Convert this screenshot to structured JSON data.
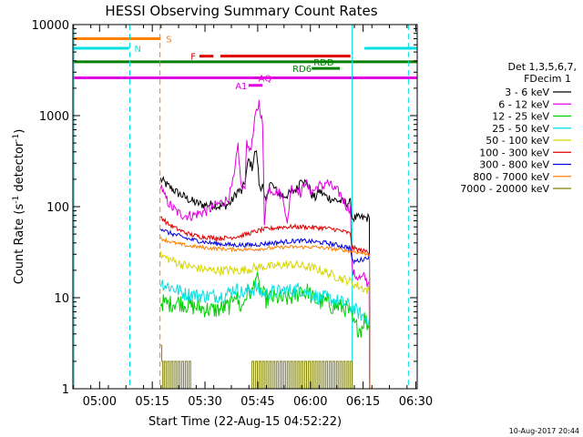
{
  "chart_data": {
    "type": "line",
    "title": "HESSI Observing Summary Count Rates",
    "xlabel": "Start Time (22-Aug-15 04:52:22)",
    "ylabel_main": "Count Rate (s",
    "ylabel_sup1": "-1",
    "ylabel_mid": " detector",
    "ylabel_sup2": "-1",
    "ylabel_end": ")",
    "footer": "10-Aug-2017 20:44",
    "y_scale": "log",
    "ylim": [
      1,
      10000
    ],
    "x_unit": "minutes since 04:52:22",
    "xlim": [
      0,
      98
    ],
    "xticks": [
      {
        "x": 7.6,
        "label": "05:00"
      },
      {
        "x": 22.6,
        "label": "05:15"
      },
      {
        "x": 37.6,
        "label": "05:30"
      },
      {
        "x": 52.6,
        "label": "05:45"
      },
      {
        "x": 67.6,
        "label": "06:00"
      },
      {
        "x": 82.6,
        "label": "06:15"
      },
      {
        "x": 97.6,
        "label": "06:30"
      }
    ],
    "yticks": [
      {
        "y": 1,
        "label": "1"
      },
      {
        "y": 10,
        "label": "10"
      },
      {
        "y": 100,
        "label": "100"
      },
      {
        "y": 1000,
        "label": "1000"
      },
      {
        "y": 10000,
        "label": "10000"
      }
    ],
    "legend": {
      "header": [
        "Det 1,3,5,6,7,",
        "FDecim 1"
      ],
      "entries": [
        {
          "label": "3 - 6 keV",
          "color": "#000000"
        },
        {
          "label": "6 - 12 keV",
          "color": "#e000e0"
        },
        {
          "label": "12 - 25 keV",
          "color": "#00d000"
        },
        {
          "label": "25 - 50 keV",
          "color": "#00e0e0"
        },
        {
          "label": "50 - 100 keV",
          "color": "#d8d800"
        },
        {
          "label": "100 - 300 keV",
          "color": "#e00000"
        },
        {
          "label": "300 - 800 keV",
          "color": "#0000e0"
        },
        {
          "label": "800 - 7000 keV",
          "color": "#ff8000"
        },
        {
          "label": "7000 - 20000 keV",
          "color": "#808000"
        }
      ]
    },
    "flag_bars": [
      {
        "label": "S",
        "color": "#ff8000",
        "segments": [
          [
            0,
            25
          ]
        ],
        "label_x": 26.5,
        "level": 7000
      },
      {
        "label": "N",
        "color": "#00e0e0",
        "segments": [
          [
            0,
            16
          ],
          [
            83,
            98
          ]
        ],
        "label_x": 17.5,
        "level": 5500
      },
      {
        "label": "F",
        "color": "#e00000",
        "segments": [
          [
            36,
            40
          ],
          [
            42,
            79
          ]
        ],
        "label_x": 33.5,
        "level": 4500
      },
      {
        "label": "RDD",
        "color": "#008000",
        "segments": [
          [
            0,
            98
          ]
        ],
        "label_x": 68.5,
        "level": 3900
      },
      {
        "label": "RD6",
        "color": "#008000",
        "segments": [
          [
            68,
            76
          ]
        ],
        "label_x": 62.5,
        "level": 3300
      },
      {
        "label": "AQ",
        "color": "#e000e0",
        "segments": [
          [
            0,
            98
          ]
        ],
        "label_x": 52.8,
        "level": 2600
      },
      {
        "label": "A1",
        "color": "#e000e0",
        "segments": [
          [
            50,
            54
          ]
        ],
        "label_x": 46.2,
        "level": 2150
      }
    ],
    "vlines": [
      {
        "x": 0.3,
        "color": "#00e0e0",
        "style": "solid"
      },
      {
        "x": 16.2,
        "color": "#00e0e0",
        "style": "dashed"
      },
      {
        "x": 24.8,
        "color": "#ff8000",
        "style": "dashed"
      },
      {
        "x": 79.5,
        "color": "#00e0e0",
        "style": "solid"
      },
      {
        "x": 95.5,
        "color": "#00e0e0",
        "style": "dashed"
      }
    ],
    "series": [
      {
        "name": "3 - 6 keV",
        "color": "#000000",
        "noise": 0.05,
        "x": [
          25,
          27,
          30,
          33,
          35,
          37,
          40,
          42,
          44,
          45,
          46,
          47,
          48,
          49,
          50,
          51,
          52,
          52.5,
          53,
          53.5,
          54,
          54.5,
          55,
          56,
          57,
          58,
          60,
          62,
          64,
          65,
          66,
          67,
          68,
          69,
          70,
          72,
          74,
          76,
          78,
          79,
          79.5,
          80,
          81,
          83,
          84,
          84.4,
          84.5
        ],
        "y": [
          200,
          170,
          140,
          120,
          110,
          105,
          105,
          100,
          105,
          112,
          130,
          150,
          145,
          190,
          330,
          270,
          420,
          340,
          175,
          165,
          170,
          120,
          110,
          190,
          165,
          145,
          130,
          140,
          160,
          215,
          185,
          170,
          135,
          125,
          150,
          130,
          120,
          115,
          110,
          110,
          75,
          75,
          75,
          75,
          75,
          74,
          1
        ]
      },
      {
        "name": "6 - 12 keV",
        "color": "#e000e0",
        "noise": 0.06,
        "x": [
          25,
          26,
          28,
          30,
          32,
          34,
          36,
          38,
          40,
          42,
          44,
          45,
          46,
          47,
          47.5,
          48,
          48.5,
          49,
          49.5,
          50,
          51,
          52,
          53,
          54,
          54.5,
          55,
          56,
          57,
          58,
          60,
          61,
          62,
          64,
          65,
          66,
          67,
          68,
          69,
          70,
          71,
          72,
          73,
          74,
          76,
          78,
          79,
          79.5,
          80,
          81,
          82,
          83,
          84,
          84.3,
          84.5
        ],
        "y": [
          180,
          130,
          100,
          85,
          80,
          80,
          85,
          90,
          100,
          110,
          120,
          150,
          220,
          480,
          250,
          160,
          150,
          180,
          600,
          400,
          500,
          1000,
          1400,
          800,
          60,
          130,
          160,
          150,
          150,
          125,
          60,
          160,
          160,
          135,
          195,
          160,
          145,
          155,
          175,
          160,
          190,
          175,
          160,
          140,
          100,
          95,
          20,
          18,
          17,
          16,
          17,
          14,
          15,
          1
        ]
      },
      {
        "name": "12 - 25 keV",
        "color": "#00d000",
        "noise": 0.1,
        "x": [
          25,
          27,
          30,
          32,
          34,
          36,
          38,
          40,
          42,
          44,
          45,
          46,
          47,
          48,
          49,
          50,
          51,
          52,
          53,
          54,
          55,
          56,
          58,
          60,
          62,
          64,
          65,
          66,
          67,
          68,
          70,
          72,
          74,
          76,
          78,
          79,
          80,
          81,
          82,
          83,
          84,
          84.4,
          84.5
        ],
        "y": [
          9,
          8.5,
          9,
          8.5,
          8,
          7.8,
          7.5,
          7.3,
          7.5,
          8,
          8.2,
          12,
          9,
          7.5,
          10,
          12,
          11,
          18,
          13,
          11,
          9.5,
          10,
          10,
          9.5,
          10,
          11,
          13,
          11,
          12,
          10,
          9,
          9,
          8,
          8,
          7.5,
          6.5,
          5,
          4.7,
          4.5,
          6,
          5,
          4.8,
          1
        ]
      },
      {
        "name": "25 - 50 keV",
        "color": "#00e0e0",
        "noise": 0.08,
        "x": [
          25,
          26,
          28,
          30,
          32,
          34,
          36,
          38,
          40,
          42,
          44,
          45,
          46,
          47,
          48,
          49,
          50,
          51,
          52,
          53,
          54,
          55,
          56,
          58,
          60,
          62,
          64,
          66,
          68,
          70,
          72,
          74,
          76,
          78,
          79,
          80,
          81,
          82,
          83,
          84,
          84.4,
          84.5
        ],
        "y": [
          15,
          14,
          13,
          12,
          11,
          11,
          10.5,
          10.5,
          10.5,
          10.5,
          11,
          12,
          12.5,
          12,
          11.5,
          11,
          12.5,
          12,
          13,
          12,
          11,
          11,
          11.5,
          11.5,
          12,
          12,
          12.5,
          12,
          11,
          10,
          10,
          9.5,
          9,
          8.5,
          8,
          7.5,
          7,
          6.5,
          6,
          6,
          6,
          1
        ]
      },
      {
        "name": "50 - 100 keV",
        "color": "#d8d800",
        "noise": 0.05,
        "x": [
          25,
          27,
          30,
          33,
          36,
          39,
          42,
          45,
          48,
          51,
          54,
          57,
          60,
          63,
          66,
          69,
          72,
          75,
          77,
          79,
          80,
          82,
          84,
          84.4,
          84.5
        ],
        "y": [
          29,
          27,
          24,
          22,
          21,
          20,
          20,
          20,
          20,
          21,
          22,
          22,
          23,
          23,
          22,
          21,
          19,
          17,
          16,
          15,
          14,
          13,
          12,
          11.5,
          1
        ]
      },
      {
        "name": "100 - 300 keV",
        "color": "#e00000",
        "noise": 0.025,
        "x": [
          25,
          27,
          30,
          33,
          36,
          39,
          42,
          45,
          48,
          51,
          54,
          57,
          60,
          63,
          66,
          69,
          72,
          75,
          78,
          79,
          79.5,
          80,
          82,
          84,
          84.4,
          84.5
        ],
        "y": [
          78,
          65,
          56,
          50,
          47,
          46,
          45,
          46,
          48,
          52,
          56,
          58,
          60,
          60,
          60,
          59,
          58,
          56,
          52,
          50,
          35,
          35,
          33,
          32,
          30,
          1
        ]
      },
      {
        "name": "300 - 800 keV",
        "color": "#0000e0",
        "noise": 0.025,
        "x": [
          25,
          27,
          30,
          33,
          36,
          39,
          42,
          45,
          48,
          51,
          54,
          57,
          60,
          63,
          66,
          69,
          72,
          75,
          78,
          79,
          79.5,
          80,
          82,
          84,
          84.4,
          84.5
        ],
        "y": [
          58,
          52,
          48,
          44,
          42,
          40,
          39,
          38,
          38,
          38,
          39,
          40,
          41,
          42,
          42,
          41,
          40,
          38,
          36,
          35,
          25,
          25,
          26,
          28,
          27,
          1
        ]
      },
      {
        "name": "800 - 7000 keV",
        "color": "#ff8000",
        "noise": 0.02,
        "x": [
          25,
          27,
          30,
          33,
          36,
          39,
          42,
          45,
          48,
          51,
          54,
          57,
          60,
          63,
          66,
          69,
          72,
          75,
          78,
          80,
          82,
          84,
          84.4,
          84.5
        ],
        "y": [
          45,
          42,
          39,
          37,
          36,
          35,
          34.5,
          34,
          34,
          34,
          34.5,
          35,
          36,
          36,
          36,
          36,
          35,
          34,
          33,
          32,
          31,
          30,
          30,
          1
        ]
      },
      {
        "name": "7000 - 20000 keV",
        "color": "#808000",
        "noise": 0,
        "step": true,
        "x": [
          25,
          25.3,
          25.6,
          26,
          26.5,
          27,
          27.5,
          28,
          28.5,
          29,
          29.5,
          30,
          30.5,
          31,
          31.5,
          32,
          32.5,
          33,
          33.5,
          34,
          51,
          51.5,
          52,
          52.5,
          53,
          53.5,
          54,
          54.5,
          55,
          55.5,
          56,
          56.5,
          57,
          57.5,
          58,
          58.5,
          59,
          59.5,
          60,
          60.5,
          61,
          61.5,
          62,
          62.5,
          63,
          63.5,
          64,
          64.5,
          65,
          65.5,
          66,
          66.5,
          67,
          67.5,
          68,
          68.5,
          69,
          69.5,
          70,
          70.5,
          71,
          71.5,
          72,
          72.5,
          73,
          73.5,
          74,
          74.5,
          75,
          75.5,
          76,
          76.5,
          77,
          77.5,
          78,
          78.5,
          79,
          79.5,
          80,
          81,
          82,
          83,
          84
        ],
        "y": [
          3,
          2,
          1,
          2,
          1,
          2,
          1,
          2,
          1,
          2,
          1,
          2,
          1,
          2,
          1,
          2,
          1,
          2,
          1,
          1,
          2,
          1,
          2,
          1,
          2,
          1,
          2,
          1,
          2,
          1,
          2,
          1,
          2,
          1,
          2,
          1,
          2,
          1,
          2,
          1,
          2,
          1,
          2,
          1,
          2,
          1,
          2,
          1,
          2,
          1,
          2,
          1,
          2,
          1,
          2,
          1,
          2,
          1,
          2,
          1,
          2,
          1,
          2,
          1,
          2,
          1,
          2,
          1,
          2,
          1,
          2,
          1,
          2,
          1,
          2,
          1,
          2,
          1,
          1,
          1,
          1,
          1,
          1
        ]
      }
    ]
  }
}
